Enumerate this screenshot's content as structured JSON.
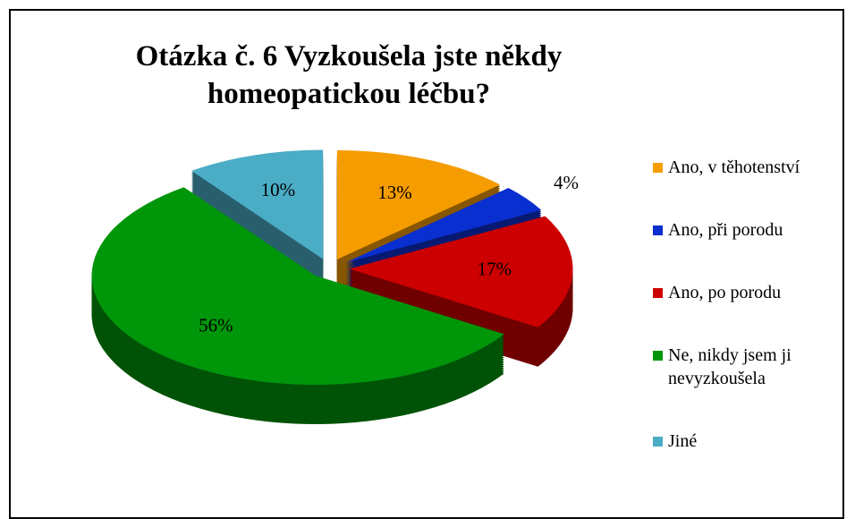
{
  "chart_data": {
    "type": "pie",
    "title": "Otázka č. 6 Vyzkoušela jste někdy homeopatickou léčbu?",
    "categories": [
      "Ano, v těhotenství",
      "Ano, při porodu",
      "Ano, po porodu",
      "Ne, nikdy jsem ji nevyzkoušela",
      "Jiné"
    ],
    "values": [
      13,
      4,
      17,
      56,
      10
    ],
    "value_labels": [
      "13%",
      "4%",
      "17%",
      "56%",
      "10%"
    ],
    "colors": [
      "#f59c00",
      "#0a2fd0",
      "#cc0000",
      "#00960a",
      "#4bacc6"
    ],
    "legend": "right"
  }
}
